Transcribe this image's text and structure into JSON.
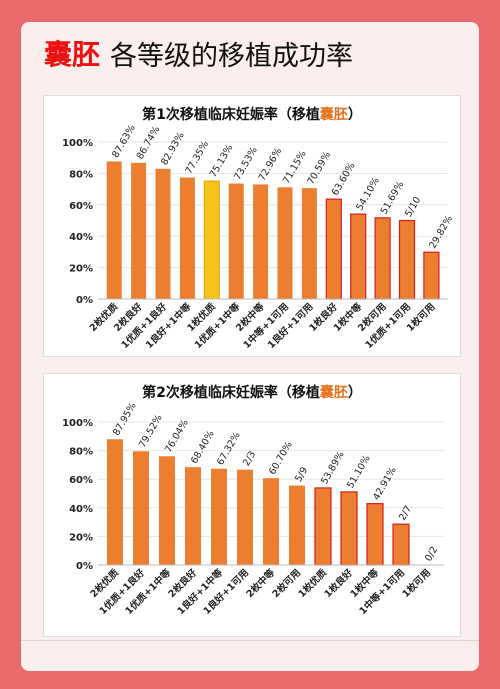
{
  "header": {
    "highlight": "囊胚",
    "title": "各等级的移植成功率"
  },
  "chart_data": [
    {
      "type": "bar",
      "title_prefix": "第1次移植临床妊娠率（移植",
      "title_highlight": "囊胚",
      "title_suffix": "）",
      "yticks": [
        "100%",
        "80%",
        "60%",
        "40%",
        "20%",
        "0%"
      ],
      "ylim": [
        0,
        100
      ],
      "categories": [
        "2枚优质",
        "2枚良好",
        "1优质+1良好",
        "1良好+1中等",
        "1枚优质",
        "1优质+1中等",
        "2枚中等",
        "1中等+1可用",
        "1良好+1可用",
        "1枚良好",
        "1枚中等",
        "2枚可用",
        "1优质+1可用",
        "1枚可用"
      ],
      "values": [
        87.63,
        86.74,
        82.93,
        77.35,
        75.13,
        73.53,
        72.96,
        71.15,
        70.59,
        63.6,
        54.1,
        51.69,
        50.0,
        29.82
      ],
      "labels": [
        "87.63%",
        "86.74%",
        "82.93%",
        "77.35%",
        "75.13%",
        "73.53%",
        "72.96%",
        "71.15%",
        "70.59%",
        "63.60%",
        "54.10%",
        "51.69%",
        "5/10",
        "29.82%"
      ],
      "highlight_index": 4,
      "outlined": [
        9,
        10,
        11,
        12,
        13
      ],
      "colors": {
        "bar": "#ec7e2f",
        "highlight": "#f7c21c",
        "outline": "#d81e1e"
      }
    },
    {
      "type": "bar",
      "title_prefix": "第2次移植临床妊娠率（移植",
      "title_highlight": "囊胚",
      "title_suffix": "）",
      "yticks": [
        "100%",
        "80%",
        "60%",
        "40%",
        "20%",
        "0%"
      ],
      "ylim": [
        0,
        100
      ],
      "categories": [
        "2枚优质",
        "1优质+1良好",
        "1优质+1中等",
        "2枚良好",
        "1良好+1中等",
        "1良好+1可用",
        "2枚中等",
        "2枚可用",
        "1枚优质",
        "1枚良好",
        "1枚中等",
        "1中等+1可用",
        "1枚可用"
      ],
      "values": [
        87.95,
        79.52,
        76.04,
        68.4,
        67.32,
        66.67,
        60.7,
        55.56,
        53.89,
        51.1,
        42.91,
        28.57,
        0
      ],
      "labels": [
        "87.95%",
        "79.52%",
        "76.04%",
        "68.40%",
        "67.32%",
        "2/3",
        "60.70%",
        "5/9",
        "53.89%",
        "51.10%",
        "42.91%",
        "2/7",
        "0/2"
      ],
      "outlined": [
        8,
        9,
        10,
        11,
        12
      ],
      "colors": {
        "bar": "#ec7e2f",
        "outline": "#d81e1e"
      }
    }
  ]
}
